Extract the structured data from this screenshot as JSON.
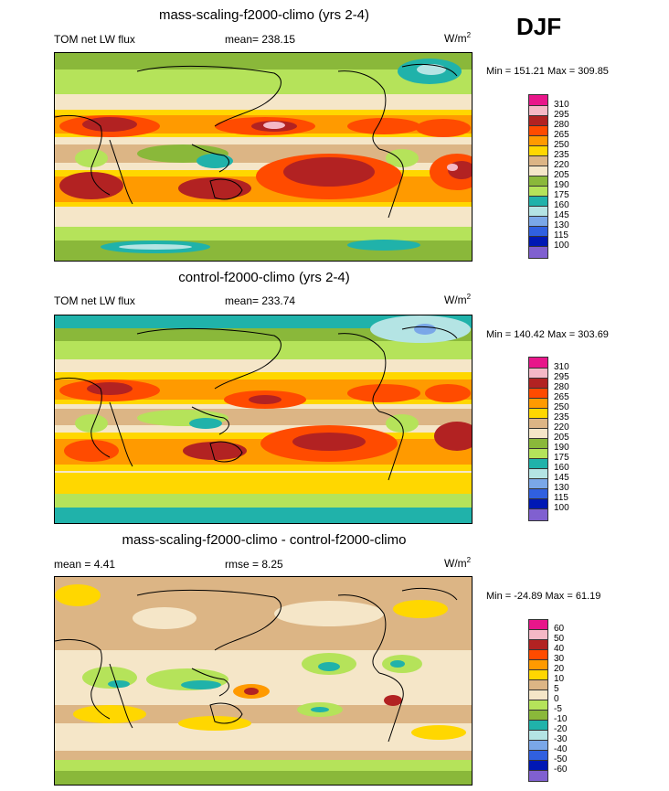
{
  "season": "DJF",
  "colors": {
    "c310": "#e8168a",
    "c295": "#f5b8c6",
    "c280": "#b22222",
    "c265": "#ff4b00",
    "c250": "#ff9a00",
    "c235": "#ffd700",
    "c220": "#dcb585",
    "c205": "#f5e6c8",
    "c190": "#8ab83a",
    "c175": "#b5e35a",
    "c160": "#20b2aa",
    "c145": "#b4e4e4",
    "c130": "#7aa7e8",
    "c115": "#3060e0",
    "c100": "#0018b4",
    "c_low": "#8060d0"
  },
  "panels": [
    {
      "title": "mass-scaling-f2000-climo (yrs 2-4)",
      "left_label": "TOM net LW flux",
      "center_label": "mean= 238.15",
      "units": "W/m",
      "units_sup": "2",
      "minmax": "Min = 151.21 Max = 309.85",
      "ticks": [
        "310",
        "295",
        "280",
        "265",
        "250",
        "235",
        "220",
        "205",
        "190",
        "175",
        "160",
        "145",
        "130",
        "115",
        "100"
      ]
    },
    {
      "title": "control-f2000-climo (yrs 2-4)",
      "left_label": "TOM net LW flux",
      "center_label": "mean= 233.74",
      "units": "W/m",
      "units_sup": "2",
      "minmax": "Min = 140.42 Max = 303.69",
      "ticks": [
        "310",
        "295",
        "280",
        "265",
        "250",
        "235",
        "220",
        "205",
        "190",
        "175",
        "160",
        "145",
        "130",
        "115",
        "100"
      ]
    },
    {
      "title": "mass-scaling-f2000-climo - control-f2000-climo",
      "left_label": "mean =   4.41",
      "center_label": "rmse =   8.25",
      "units": "W/m",
      "units_sup": "2",
      "minmax": "Min = -24.89 Max =  61.19",
      "ticks": [
        "60",
        "50",
        "40",
        "30",
        "20",
        "10",
        "5",
        "0",
        "-5",
        "-10",
        "-20",
        "-30",
        "-40",
        "-50",
        "-60"
      ]
    }
  ]
}
